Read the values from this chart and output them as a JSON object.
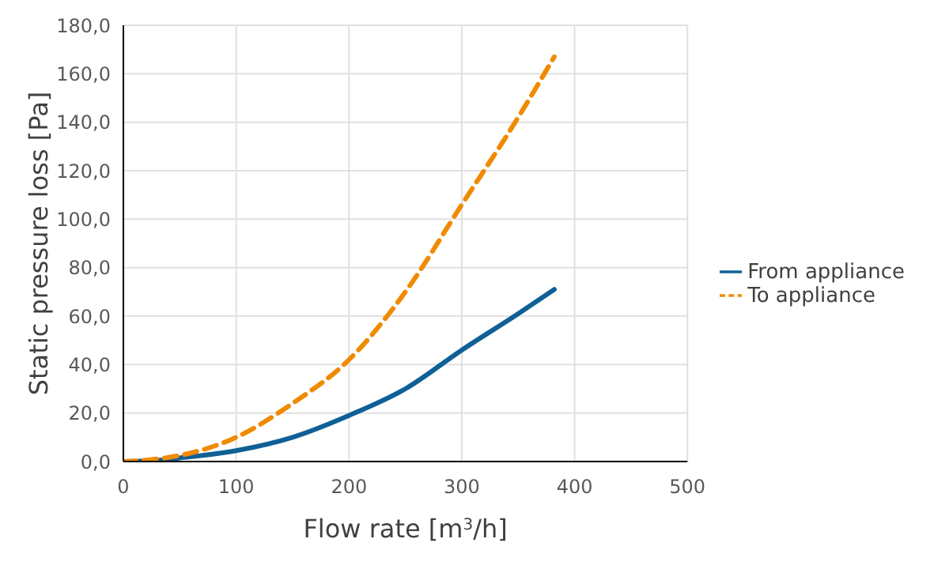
{
  "chart_data": {
    "type": "line",
    "xlabel": "Flow rate [m$^{3}$/h]",
    "ylabel": "Static pressure loss [Pa]",
    "x": [
      0,
      25,
      50,
      100,
      150,
      200,
      250,
      300,
      350,
      382
    ],
    "series": [
      {
        "name": "From appliance",
        "color": "#0f6096",
        "line_style": "solid",
        "values": [
          0,
          0.3,
          1.5,
          4.5,
          10,
          19,
          30,
          46,
          61,
          71
        ]
      },
      {
        "name": "To appliance",
        "color": "#f08a00",
        "line_style": "dashed",
        "values": [
          0,
          0.8,
          2.5,
          10,
          24,
          42,
          70,
          106,
          142,
          167
        ]
      }
    ],
    "xlim": [
      0,
      500
    ],
    "xticks": [
      0,
      100,
      200,
      300,
      400,
      500
    ],
    "ylim": [
      0,
      180
    ],
    "yticks": [
      {
        "value": 0,
        "label": "0,0"
      },
      {
        "value": 20,
        "label": "20,0"
      },
      {
        "value": 40,
        "label": "40,0"
      },
      {
        "value": 60,
        "label": "60,0"
      },
      {
        "value": 80,
        "label": "80,0"
      },
      {
        "value": 100,
        "label": "100,0"
      },
      {
        "value": 120,
        "label": "120,0"
      },
      {
        "value": 140,
        "label": "140,0"
      },
      {
        "value": 160,
        "label": "160,0"
      },
      {
        "value": 180,
        "label": "180,0"
      }
    ],
    "grid": true,
    "legend": "right",
    "marker": "none"
  }
}
